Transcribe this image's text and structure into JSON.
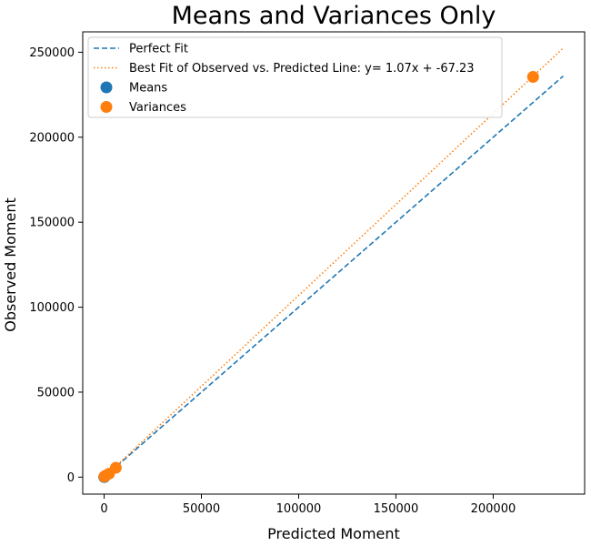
{
  "chart_data": {
    "type": "scatter",
    "title": "Means and Variances Only",
    "xlabel": "Predicted Moment",
    "ylabel": "Observed Moment",
    "xlim": [
      -11000,
      247000
    ],
    "ylim": [
      -10000,
      262000
    ],
    "x_ticks": [
      0,
      50000,
      100000,
      150000,
      200000
    ],
    "x_tick_labels": [
      "0",
      "50000",
      "100000",
      "150000",
      "200000"
    ],
    "y_ticks": [
      0,
      50000,
      100000,
      150000,
      200000,
      250000
    ],
    "y_tick_labels": [
      "0",
      "50000",
      "100000",
      "150000",
      "200000",
      "250000"
    ],
    "grid": false,
    "legend_position": "top-left",
    "colors": {
      "means": "#1f77b4",
      "variances": "#ff7f0e"
    },
    "lines": [
      {
        "name": "Perfect Fit",
        "style": "dashed",
        "color": "#1f77b4",
        "x": [
          0,
          236000
        ],
        "y": [
          0,
          236000
        ]
      },
      {
        "name": "Best Fit of Observed vs. Predicted Line: y= 1.07x + -67.23",
        "style": "dotted",
        "color": "#ff7f0e",
        "x": [
          0,
          236000
        ],
        "y": [
          -67.23,
          252452.77
        ]
      }
    ],
    "series": [
      {
        "name": "Means",
        "type": "scatter",
        "color": "#1f77b4",
        "x": [
          50,
          120,
          200
        ],
        "y": [
          60,
          110,
          180
        ]
      },
      {
        "name": "Variances",
        "type": "scatter",
        "color": "#ff7f0e",
        "x": [
          150,
          600,
          2500,
          6000,
          220500
        ],
        "y": [
          300,
          800,
          2000,
          5500,
          235500
        ]
      }
    ]
  }
}
